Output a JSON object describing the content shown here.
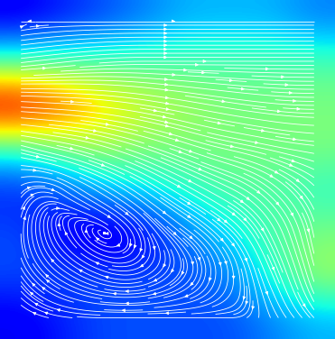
{
  "chart_data": {
    "type": "heatmap",
    "tick_labels": false,
    "color": "white",
    "zlim": [
      0,
      1
    ],
    "cells": [
      [
        0.1,
        0.15,
        0.2,
        0.25,
        0.3,
        0.3,
        0.3,
        0.25
      ],
      [
        0.45,
        0.45,
        0.45,
        0.45,
        0.45,
        0.45,
        0.45,
        0.45
      ],
      [
        1.0,
        0.85,
        0.7,
        0.6,
        0.55,
        0.5,
        0.5,
        0.5
      ],
      [
        0.4,
        0.5,
        0.55,
        0.5,
        0.5,
        0.5,
        0.5,
        0.5
      ],
      [
        0.15,
        0.2,
        0.3,
        0.35,
        0.4,
        0.45,
        0.45,
        0.4
      ],
      [
        0.2,
        0.1,
        0.05,
        0.1,
        0.25,
        0.35,
        0.45,
        0.5
      ],
      [
        0.2,
        0.2,
        0.2,
        0.2,
        0.2,
        0.25,
        0.4,
        0.55
      ],
      [
        0.1,
        0.15,
        0.2,
        0.2,
        0.2,
        0.2,
        0.25,
        0.3
      ]
    ],
    "u": [
      [
        -0.05,
        0.1,
        0.2,
        0.25,
        0.3,
        0.3,
        0.3,
        0.25
      ],
      [
        0.45,
        0.45,
        0.45,
        0.45,
        0.45,
        0.45,
        0.45,
        0.45
      ],
      [
        1.0,
        0.85,
        0.7,
        0.6,
        0.55,
        0.5,
        0.5,
        0.5
      ],
      [
        0.35,
        0.45,
        0.5,
        0.45,
        0.45,
        0.48,
        0.48,
        0.48
      ],
      [
        0.1,
        0.15,
        0.25,
        0.3,
        0.35,
        0.4,
        0.35,
        0.25
      ],
      [
        0,
        -0.05,
        0,
        0.05,
        0.2,
        0.25,
        0.2,
        0.1
      ],
      [
        -0.1,
        -0.15,
        -0.15,
        -0.1,
        -0.05,
        0,
        0.15,
        0.15
      ],
      [
        -0.1,
        -0.15,
        -0.2,
        -0.2,
        -0.2,
        -0.15,
        0.05,
        0.2
      ]
    ],
    "v": [
      [
        0,
        0,
        0,
        0,
        0,
        0,
        0,
        0
      ],
      [
        0.05,
        0.05,
        0.03,
        0,
        0,
        0,
        0,
        0
      ],
      [
        -0.05,
        -0.05,
        -0.08,
        -0.1,
        -0.1,
        -0.08,
        -0.05,
        0
      ],
      [
        -0.1,
        -0.1,
        -0.15,
        -0.15,
        -0.15,
        -0.1,
        -0.1,
        -0.05
      ],
      [
        0.1,
        -0.1,
        -0.15,
        -0.2,
        -0.2,
        -0.2,
        -0.3,
        -0.3
      ],
      [
        0.2,
        0.1,
        0,
        -0.1,
        -0.15,
        -0.25,
        -0.4,
        -0.5
      ],
      [
        0.15,
        0.1,
        0.05,
        -0.05,
        -0.1,
        -0.2,
        -0.35,
        -0.5
      ],
      [
        0.05,
        0.02,
        0,
        0,
        0,
        0,
        -0.1,
        -0.2
      ]
    ]
  }
}
